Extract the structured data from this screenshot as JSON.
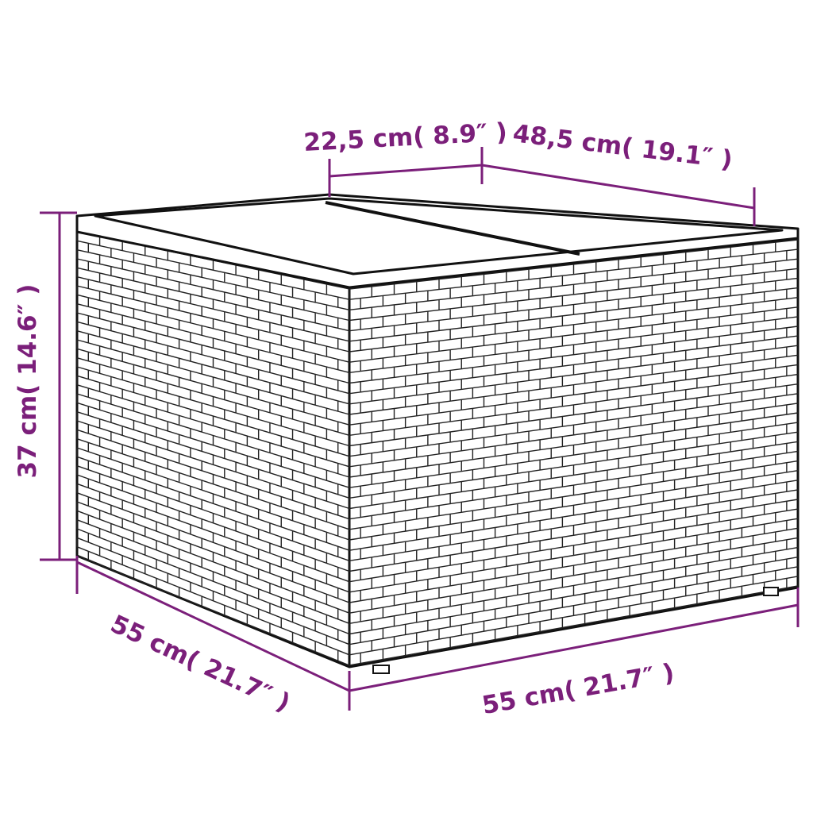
{
  "colors": {
    "dimension": "#7b1f7a",
    "outline": "#111111"
  },
  "product": "wicker storage side table with glass top",
  "dimensions": {
    "top_inset": "22,5 cm( 8.9″ )",
    "top_depth": "48,5 cm( 19.1″ )",
    "height": "37 cm( 14.6″ )",
    "depth": "55 cm( 21.7″ )",
    "width": "55 cm( 21.7″ )"
  }
}
